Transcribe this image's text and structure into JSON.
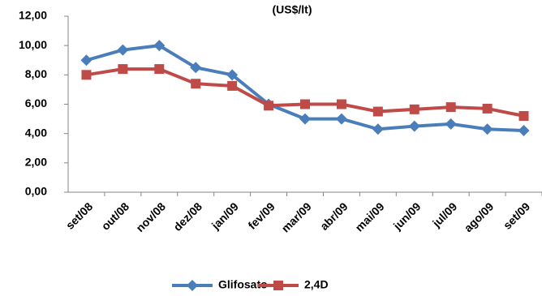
{
  "chart_data": {
    "type": "line",
    "title": "(US$/lt)",
    "categories": [
      "set/08",
      "out/08",
      "nov/08",
      "dez/08",
      "jan/09",
      "fev/09",
      "mar/09",
      "abr/09",
      "mai/09",
      "jun/09",
      "jul/09",
      "ago/09",
      "set/09"
    ],
    "series": [
      {
        "name": "Glifosato",
        "color": "#4a7ebb",
        "marker": "diamond",
        "values": [
          9.0,
          9.7,
          10.0,
          8.5,
          8.0,
          6.0,
          5.0,
          5.0,
          4.3,
          4.5,
          4.65,
          4.3,
          4.2
        ]
      },
      {
        "name": "2,4D",
        "color": "#be4b48",
        "marker": "square",
        "values": [
          8.0,
          8.4,
          8.4,
          7.4,
          7.25,
          5.9,
          6.0,
          6.0,
          5.5,
          5.65,
          5.8,
          5.7,
          5.2
        ]
      }
    ],
    "ylim": [
      0,
      12
    ],
    "yticks": [
      {
        "value": 0,
        "label": "0,00"
      },
      {
        "value": 2,
        "label": "2,00"
      },
      {
        "value": 4,
        "label": "4,00"
      },
      {
        "value": 6,
        "label": "6,00"
      },
      {
        "value": 8,
        "label": "8,00"
      },
      {
        "value": 10,
        "label": "10,00"
      },
      {
        "value": 12,
        "label": "12,00"
      }
    ],
    "grid": false,
    "legend": "bottom"
  }
}
